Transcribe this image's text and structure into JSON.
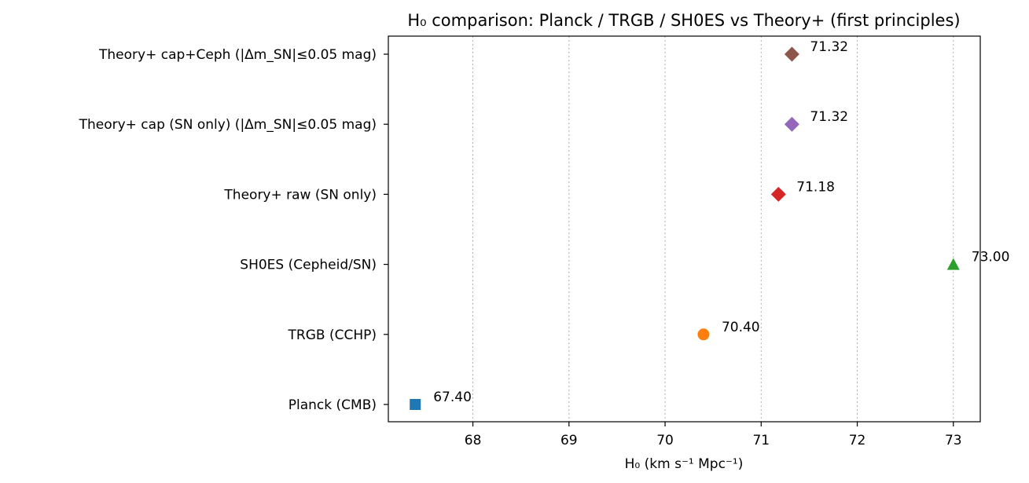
{
  "chart_data": {
    "type": "scatter",
    "title": "H₀ comparison: Planck / TRGB / SH0ES vs Theory+ (first principles)",
    "xlabel": "H₀  (km s⁻¹ Mpc⁻¹)",
    "ylabel": "",
    "xlim": [
      67.12,
      73.28
    ],
    "xticks": [
      68,
      69,
      70,
      71,
      72,
      73
    ],
    "grid": "x-dotted",
    "legend": "none",
    "categories": [
      "Planck (CMB)",
      "TRGB (CCHP)",
      "SH0ES (Cepheid/SN)",
      "Theory+ raw (SN only)",
      "Theory+ cap (SN only) (|Δm_SN|≤0.05 mag)",
      "Theory+ cap+Ceph (|Δm_SN|≤0.05 mag)"
    ],
    "points": [
      {
        "category": "Planck (CMB)",
        "value": 67.4,
        "label": "67.40",
        "marker": "square",
        "color": "#1f77b4"
      },
      {
        "category": "TRGB (CCHP)",
        "value": 70.4,
        "label": "70.40",
        "marker": "circle",
        "color": "#ff7f0e"
      },
      {
        "category": "SH0ES (Cepheid/SN)",
        "value": 73.0,
        "label": "73.00",
        "marker": "triangle",
        "color": "#2ca02c"
      },
      {
        "category": "Theory+ raw (SN only)",
        "value": 71.18,
        "label": "71.18",
        "marker": "diamond",
        "color": "#d62728"
      },
      {
        "category": "Theory+ cap (SN only) (|Δm_SN|≤0.05 mag)",
        "value": 71.32,
        "label": "71.32",
        "marker": "diamond",
        "color": "#9467bd"
      },
      {
        "category": "Theory+ cap+Ceph (|Δm_SN|≤0.05 mag)",
        "value": 71.32,
        "label": "71.32",
        "marker": "diamond",
        "color": "#8c564b"
      }
    ]
  }
}
